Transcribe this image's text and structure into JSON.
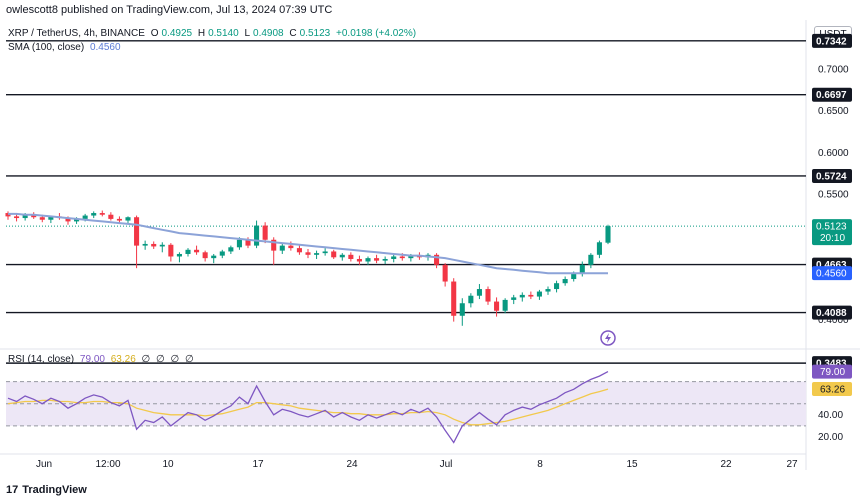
{
  "header": {
    "published": "owlescott8 published on TradingView.com, Jul 13, 2024 07:39 UTC",
    "currency": "USDT"
  },
  "legend": {
    "symbol": "XRP / TetherUS, 4h, BINANCE",
    "open_label": "O",
    "open": "0.4925",
    "high_label": "H",
    "high": "0.5140",
    "low_label": "L",
    "low": "0.4908",
    "close_label": "C",
    "close": "0.5123",
    "change": "+0.0198 (+4.02%)",
    "sma_title": "SMA (100, close)",
    "sma_value": "0.4560"
  },
  "rsi_legend": {
    "title": "RSI (14, close)",
    "value": "79.00",
    "ma_value": "63.26",
    "extras": [
      "∅",
      "∅",
      "∅",
      "∅"
    ]
  },
  "footer": {
    "brand": "TradingView",
    "mark": "17"
  },
  "colors": {
    "up": "#089981",
    "down": "#f23645",
    "sma": "#8ca3d8",
    "rsi": "#7e57c2",
    "rsi_ma": "#f2c94c",
    "level": "#131722",
    "band": "#ede7f6"
  },
  "chart_data": {
    "type": "candlestick",
    "timeframe": "4h",
    "y_axis_ticks": [
      "0.7000",
      "0.6500",
      "0.6000",
      "0.5500",
      "0.4000"
    ],
    "ylim": [
      0.37,
      0.74
    ],
    "x_ticks": [
      "Jun",
      "12:00",
      "10",
      "17",
      "24",
      "Jul",
      "8",
      "15",
      "22",
      "27"
    ],
    "horizontal_levels": [
      {
        "value": 0.7342,
        "label": "0.7342"
      },
      {
        "value": 0.6697,
        "label": "0.6697"
      },
      {
        "value": 0.5724,
        "label": "0.5724"
      },
      {
        "value": 0.4663,
        "label": "0.4663"
      },
      {
        "value": 0.4088,
        "label": "0.4088"
      },
      {
        "value": 0.3483,
        "label": "0.3483"
      }
    ],
    "price_tags": [
      {
        "value": 0.5123,
        "label": "0.5123",
        "sub": "20:10",
        "color": "#089981"
      },
      {
        "value": 0.456,
        "label": "0.4560",
        "color": "#2962ff"
      }
    ],
    "ohlc": [
      [
        0.528,
        0.53,
        0.52,
        0.524
      ],
      [
        0.524,
        0.527,
        0.518,
        0.522
      ],
      [
        0.522,
        0.528,
        0.519,
        0.526
      ],
      [
        0.526,
        0.529,
        0.521,
        0.523
      ],
      [
        0.523,
        0.526,
        0.517,
        0.52
      ],
      [
        0.52,
        0.525,
        0.516,
        0.524
      ],
      [
        0.524,
        0.528,
        0.52,
        0.522
      ],
      [
        0.522,
        0.524,
        0.514,
        0.518
      ],
      [
        0.518,
        0.523,
        0.515,
        0.521
      ],
      [
        0.521,
        0.527,
        0.518,
        0.525
      ],
      [
        0.525,
        0.53,
        0.522,
        0.528
      ],
      [
        0.528,
        0.531,
        0.524,
        0.526
      ],
      [
        0.526,
        0.529,
        0.519,
        0.521
      ],
      [
        0.521,
        0.524,
        0.516,
        0.519
      ],
      [
        0.519,
        0.524,
        0.515,
        0.523
      ],
      [
        0.523,
        0.525,
        0.462,
        0.489
      ],
      [
        0.489,
        0.495,
        0.484,
        0.491
      ],
      [
        0.491,
        0.494,
        0.485,
        0.488
      ],
      [
        0.488,
        0.493,
        0.481,
        0.49
      ],
      [
        0.49,
        0.492,
        0.47,
        0.476
      ],
      [
        0.476,
        0.481,
        0.469,
        0.479
      ],
      [
        0.479,
        0.486,
        0.476,
        0.484
      ],
      [
        0.484,
        0.489,
        0.478,
        0.481
      ],
      [
        0.481,
        0.483,
        0.47,
        0.474
      ],
      [
        0.474,
        0.479,
        0.468,
        0.477
      ],
      [
        0.477,
        0.484,
        0.474,
        0.482
      ],
      [
        0.482,
        0.489,
        0.479,
        0.487
      ],
      [
        0.487,
        0.499,
        0.484,
        0.496
      ],
      [
        0.496,
        0.499,
        0.486,
        0.489
      ],
      [
        0.489,
        0.519,
        0.486,
        0.513
      ],
      [
        0.513,
        0.517,
        0.492,
        0.496
      ],
      [
        0.496,
        0.499,
        0.466,
        0.483
      ],
      [
        0.483,
        0.492,
        0.479,
        0.489
      ],
      [
        0.489,
        0.494,
        0.483,
        0.486
      ],
      [
        0.486,
        0.49,
        0.478,
        0.481
      ],
      [
        0.481,
        0.485,
        0.474,
        0.478
      ],
      [
        0.478,
        0.483,
        0.473,
        0.48
      ],
      [
        0.48,
        0.486,
        0.477,
        0.482
      ],
      [
        0.482,
        0.484,
        0.473,
        0.475
      ],
      [
        0.475,
        0.48,
        0.471,
        0.478
      ],
      [
        0.478,
        0.481,
        0.47,
        0.473
      ],
      [
        0.473,
        0.477,
        0.466,
        0.47
      ],
      [
        0.47,
        0.476,
        0.466,
        0.474
      ],
      [
        0.474,
        0.478,
        0.468,
        0.471
      ],
      [
        0.471,
        0.476,
        0.467,
        0.473
      ],
      [
        0.473,
        0.478,
        0.469,
        0.476
      ],
      [
        0.476,
        0.48,
        0.471,
        0.474
      ],
      [
        0.474,
        0.479,
        0.47,
        0.477
      ],
      [
        0.477,
        0.481,
        0.472,
        0.475
      ],
      [
        0.475,
        0.48,
        0.471,
        0.478
      ],
      [
        0.478,
        0.48,
        0.462,
        0.466
      ],
      [
        0.466,
        0.468,
        0.44,
        0.446
      ],
      [
        0.446,
        0.45,
        0.398,
        0.405
      ],
      [
        0.405,
        0.426,
        0.393,
        0.42
      ],
      [
        0.42,
        0.432,
        0.415,
        0.429
      ],
      [
        0.429,
        0.443,
        0.425,
        0.437
      ],
      [
        0.437,
        0.44,
        0.418,
        0.422
      ],
      [
        0.422,
        0.427,
        0.404,
        0.411
      ],
      [
        0.411,
        0.426,
        0.408,
        0.424
      ],
      [
        0.424,
        0.43,
        0.419,
        0.427
      ],
      [
        0.427,
        0.433,
        0.422,
        0.43
      ],
      [
        0.43,
        0.434,
        0.425,
        0.428
      ],
      [
        0.428,
        0.436,
        0.424,
        0.434
      ],
      [
        0.434,
        0.44,
        0.43,
        0.437
      ],
      [
        0.437,
        0.447,
        0.433,
        0.444
      ],
      [
        0.444,
        0.452,
        0.441,
        0.449
      ],
      [
        0.449,
        0.458,
        0.446,
        0.455
      ],
      [
        0.455,
        0.47,
        0.452,
        0.466
      ],
      [
        0.466,
        0.48,
        0.462,
        0.478
      ],
      [
        0.478,
        0.495,
        0.474,
        0.493
      ],
      [
        0.4925,
        0.514,
        0.4908,
        0.5123
      ]
    ],
    "sma": [
      0.527,
      0.527,
      0.526,
      0.526,
      0.525,
      0.524,
      0.523,
      0.522,
      0.521,
      0.52,
      0.519,
      0.518,
      0.517,
      0.516,
      0.515,
      0.514,
      0.512,
      0.51,
      0.508,
      0.506,
      0.504,
      0.503,
      0.502,
      0.501,
      0.5,
      0.499,
      0.498,
      0.497,
      0.496,
      0.495,
      0.494,
      0.493,
      0.492,
      0.491,
      0.49,
      0.489,
      0.488,
      0.487,
      0.486,
      0.485,
      0.484,
      0.483,
      0.482,
      0.481,
      0.48,
      0.479,
      0.478,
      0.477,
      0.477,
      0.476,
      0.475,
      0.474,
      0.472,
      0.47,
      0.468,
      0.466,
      0.464,
      0.462,
      0.461,
      0.46,
      0.459,
      0.458,
      0.457,
      0.456,
      0.456,
      0.456,
      0.456,
      0.456,
      0.456,
      0.456,
      0.456
    ],
    "rsi": {
      "levels": [
        70,
        50,
        30
      ],
      "axis_ticks": [
        "40.00",
        "20.00"
      ],
      "ylim": [
        10,
        85
      ],
      "values": [
        55,
        52,
        57,
        54,
        50,
        55,
        52,
        46,
        50,
        55,
        58,
        56,
        51,
        48,
        53,
        27,
        35,
        33,
        38,
        30,
        36,
        42,
        40,
        35,
        39,
        44,
        48,
        56,
        50,
        66,
        52,
        40,
        45,
        43,
        40,
        38,
        41,
        44,
        38,
        42,
        38,
        35,
        40,
        37,
        40,
        43,
        40,
        45,
        42,
        46,
        38,
        26,
        15,
        30,
        36,
        42,
        36,
        31,
        40,
        44,
        47,
        45,
        49,
        52,
        55,
        60,
        63,
        68,
        72,
        75,
        79
      ],
      "ma_values": [
        50,
        51,
        52,
        52,
        53,
        53,
        52,
        52,
        51,
        51,
        52,
        52,
        51,
        51,
        50,
        46,
        44,
        42,
        41,
        40,
        40,
        40,
        40,
        39,
        40,
        41,
        43,
        45,
        47,
        51,
        51,
        50,
        49,
        48,
        46,
        45,
        44,
        43,
        42,
        42,
        41,
        41,
        40,
        40,
        40,
        41,
        41,
        42,
        42,
        43,
        42,
        40,
        36,
        33,
        31,
        31,
        32,
        33,
        34,
        36,
        38,
        40,
        42,
        44,
        47,
        50,
        53,
        56,
        59,
        61,
        63.26
      ]
    }
  }
}
